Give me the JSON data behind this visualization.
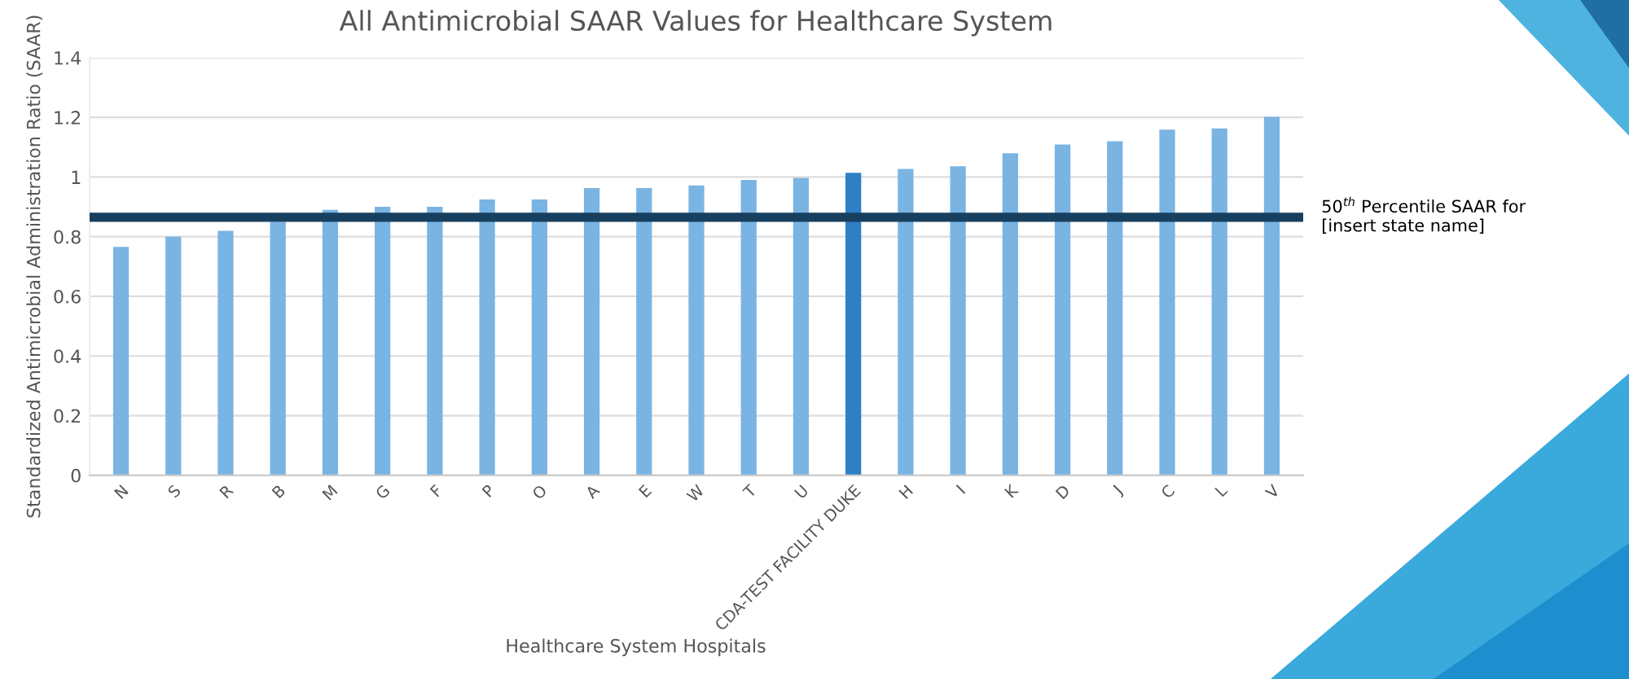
{
  "chart_data": {
    "type": "bar",
    "title": "All Antimicrobial SAAR Values for Healthcare System",
    "xlabel": "Healthcare System Hospitals",
    "ylabel": "Standardized Antimicrobial Administration Ratio (SAAR)",
    "categories": [
      "N",
      "S",
      "R",
      "B",
      "M",
      "G",
      "F",
      "P",
      "O",
      "A",
      "E",
      "W",
      "T",
      "U",
      "CDA-TEST FACILITY DUKE",
      "H",
      "I",
      "K",
      "D",
      "J",
      "C",
      "L",
      "V"
    ],
    "values": [
      0.766,
      0.8,
      0.82,
      0.85,
      0.89,
      0.9,
      0.9,
      0.925,
      0.925,
      0.963,
      0.963,
      0.972,
      0.99,
      0.997,
      1.014,
      1.027,
      1.036,
      1.08,
      1.109,
      1.12,
      1.159,
      1.163,
      1.202
    ],
    "colors": [
      "#7ab4e3",
      "#7ab4e3",
      "#7ab4e3",
      "#7ab4e3",
      "#7ab4e3",
      "#7ab4e3",
      "#7ab4e3",
      "#7ab4e3",
      "#7ab4e3",
      "#7ab4e3",
      "#7ab4e3",
      "#7ab4e3",
      "#7ab4e3",
      "#7ab4e3",
      "#2e7fc6",
      "#7ab4e3",
      "#7ab4e3",
      "#7ab4e3",
      "#7ab4e3",
      "#7ab4e3",
      "#7ab4e3",
      "#7ab4e3",
      "#7ab4e3"
    ],
    "ylim": [
      0,
      1.4
    ],
    "yticks": [
      0,
      0.2,
      0.4,
      0.6,
      0.8,
      1,
      1.2,
      1.4
    ],
    "grid": "y",
    "ref_lines": [
      {
        "axis": "y",
        "value": 0.865,
        "label": "50$^{th}$ Percentile SAAR for [insert state name]",
        "color": "#173f5f"
      }
    ]
  }
}
